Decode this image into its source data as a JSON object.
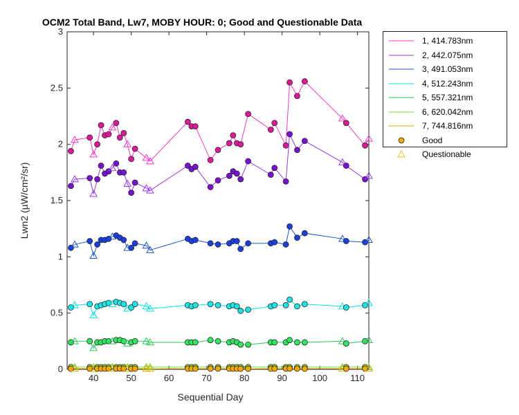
{
  "chart_data": {
    "type": "line",
    "title": "OCM2 Total Band, Lw7, MOBY HOUR: 0;  Good and Questionable Data",
    "xlabel": "Sequential Day",
    "ylabel": "Lwn2 (µW/cm²/sr)",
    "xlim": [
      33,
      113
    ],
    "ylim": [
      0,
      3
    ],
    "xticks": [
      40,
      50,
      60,
      70,
      80,
      90,
      100,
      110
    ],
    "yticks": [
      0,
      0.5,
      1,
      1.5,
      2,
      2.5,
      3
    ],
    "grid": false,
    "legend_position": "outside-top-right",
    "x": [
      34,
      35,
      39,
      40,
      41,
      42,
      43,
      44,
      45,
      46,
      47,
      48,
      49,
      50,
      51,
      54,
      55,
      65,
      66,
      67,
      71,
      73,
      76,
      77,
      78,
      79,
      81,
      87,
      88,
      91,
      92,
      94,
      96,
      106,
      107,
      112,
      113
    ],
    "flags": [
      "Good",
      "Questionable",
      "Good",
      "Questionable",
      "Good",
      "Good",
      "Good",
      "Good",
      "Questionable",
      "Good",
      "Good",
      "Good",
      "Questionable",
      "Good",
      "Good",
      "Questionable",
      "Questionable",
      "Good",
      "Good",
      "Good",
      "Good",
      "Good",
      "Good",
      "Good",
      "Good",
      "Good",
      "Good",
      "Good",
      "Good",
      "Good",
      "Good",
      "Good",
      "Good",
      "Questionable",
      "Good",
      "Good",
      "Questionable"
    ],
    "series": [
      {
        "name": "1, 414.783nm",
        "color": "#ff33cc",
        "marker_face": "#e0169c",
        "values": [
          1.94,
          2.04,
          2.06,
          1.91,
          2.0,
          2.17,
          2.08,
          2.09,
          2.15,
          2.19,
          2.06,
          2.1,
          2.0,
          1.87,
          1.96,
          1.88,
          1.85,
          2.2,
          2.16,
          2.16,
          1.86,
          1.95,
          2.01,
          2.08,
          2.01,
          2.0,
          2.27,
          2.13,
          2.19,
          1.99,
          2.55,
          2.43,
          2.56,
          2.23,
          2.19,
          1.99,
          2.05
        ]
      },
      {
        "name": "2, 442.075nm",
        "color": "#9933ff",
        "marker_face": "#7a0fd6",
        "values": [
          1.63,
          1.69,
          1.7,
          1.56,
          1.69,
          1.81,
          1.74,
          1.76,
          1.79,
          1.83,
          1.75,
          1.75,
          1.65,
          1.57,
          1.66,
          1.61,
          1.59,
          1.81,
          1.78,
          1.8,
          1.62,
          1.68,
          1.72,
          1.76,
          1.74,
          1.69,
          1.85,
          1.73,
          1.79,
          1.67,
          2.09,
          1.95,
          2.03,
          1.84,
          1.81,
          1.69,
          1.72
        ]
      },
      {
        "name": "3, 491.053nm",
        "color": "#1a55d6",
        "marker_face": "#1a3fe0",
        "values": [
          1.08,
          1.11,
          1.14,
          1.01,
          1.11,
          1.15,
          1.15,
          1.16,
          1.18,
          1.19,
          1.17,
          1.15,
          1.08,
          1.08,
          1.12,
          1.1,
          1.06,
          1.16,
          1.14,
          1.15,
          1.12,
          1.11,
          1.12,
          1.14,
          1.14,
          1.07,
          1.12,
          1.12,
          1.13,
          1.11,
          1.27,
          1.17,
          1.21,
          1.16,
          1.14,
          1.13,
          1.15
        ]
      },
      {
        "name": "4, 512.243nm",
        "color": "#00e5e5",
        "marker_face": "#1ae6e6",
        "values": [
          0.55,
          0.57,
          0.58,
          0.48,
          0.56,
          0.57,
          0.58,
          0.59,
          0.58,
          0.6,
          0.59,
          0.58,
          0.54,
          0.55,
          0.58,
          0.56,
          0.54,
          0.57,
          0.56,
          0.57,
          0.58,
          0.57,
          0.56,
          0.57,
          0.56,
          0.52,
          0.53,
          0.56,
          0.57,
          0.57,
          0.62,
          0.56,
          0.58,
          0.56,
          0.55,
          0.57,
          0.59
        ]
      },
      {
        "name": "5, 557.321nm",
        "color": "#22cc55",
        "marker_face": "#2ee85e",
        "values": [
          0.24,
          0.25,
          0.25,
          0.19,
          0.24,
          0.24,
          0.25,
          0.25,
          0.25,
          0.26,
          0.26,
          0.25,
          0.23,
          0.24,
          0.25,
          0.25,
          0.24,
          0.24,
          0.24,
          0.24,
          0.26,
          0.25,
          0.24,
          0.25,
          0.24,
          0.22,
          0.22,
          0.24,
          0.24,
          0.24,
          0.26,
          0.24,
          0.24,
          0.25,
          0.23,
          0.25,
          0.26
        ]
      },
      {
        "name": "6, 620.042nm",
        "color": "#77dd33",
        "marker_face": "#88dd33",
        "values": [
          0.02,
          0.02,
          0.02,
          0.02,
          0.02,
          0.02,
          0.02,
          0.02,
          0.02,
          0.02,
          0.02,
          0.02,
          0.02,
          0.02,
          0.02,
          0.02,
          0.02,
          0.02,
          0.02,
          0.02,
          0.02,
          0.02,
          0.02,
          0.02,
          0.02,
          0.02,
          0.02,
          0.02,
          0.02,
          0.02,
          0.02,
          0.02,
          0.02,
          0.02,
          0.02,
          0.02,
          0.02
        ]
      },
      {
        "name": "7, 744.816nm",
        "color": "#e6a800",
        "marker_face": "#f2a900",
        "values": [
          0.005,
          0.008,
          0.006,
          0.004,
          0.006,
          0.006,
          0.006,
          0.007,
          0.008,
          0.007,
          0.007,
          0.006,
          0.005,
          0.005,
          0.006,
          0.007,
          0.005,
          0.006,
          0.006,
          0.006,
          0.006,
          0.006,
          0.006,
          0.006,
          0.006,
          0.005,
          0.005,
          0.006,
          0.006,
          0.006,
          0.007,
          0.006,
          0.006,
          0.006,
          0.006,
          0.006,
          0.008
        ]
      }
    ],
    "legend_markers": [
      {
        "name": "Good",
        "face": "#f2a900",
        "edge": "#262626"
      },
      {
        "name": "Questionable",
        "face": "none",
        "edge": "#f2c418"
      }
    ]
  }
}
